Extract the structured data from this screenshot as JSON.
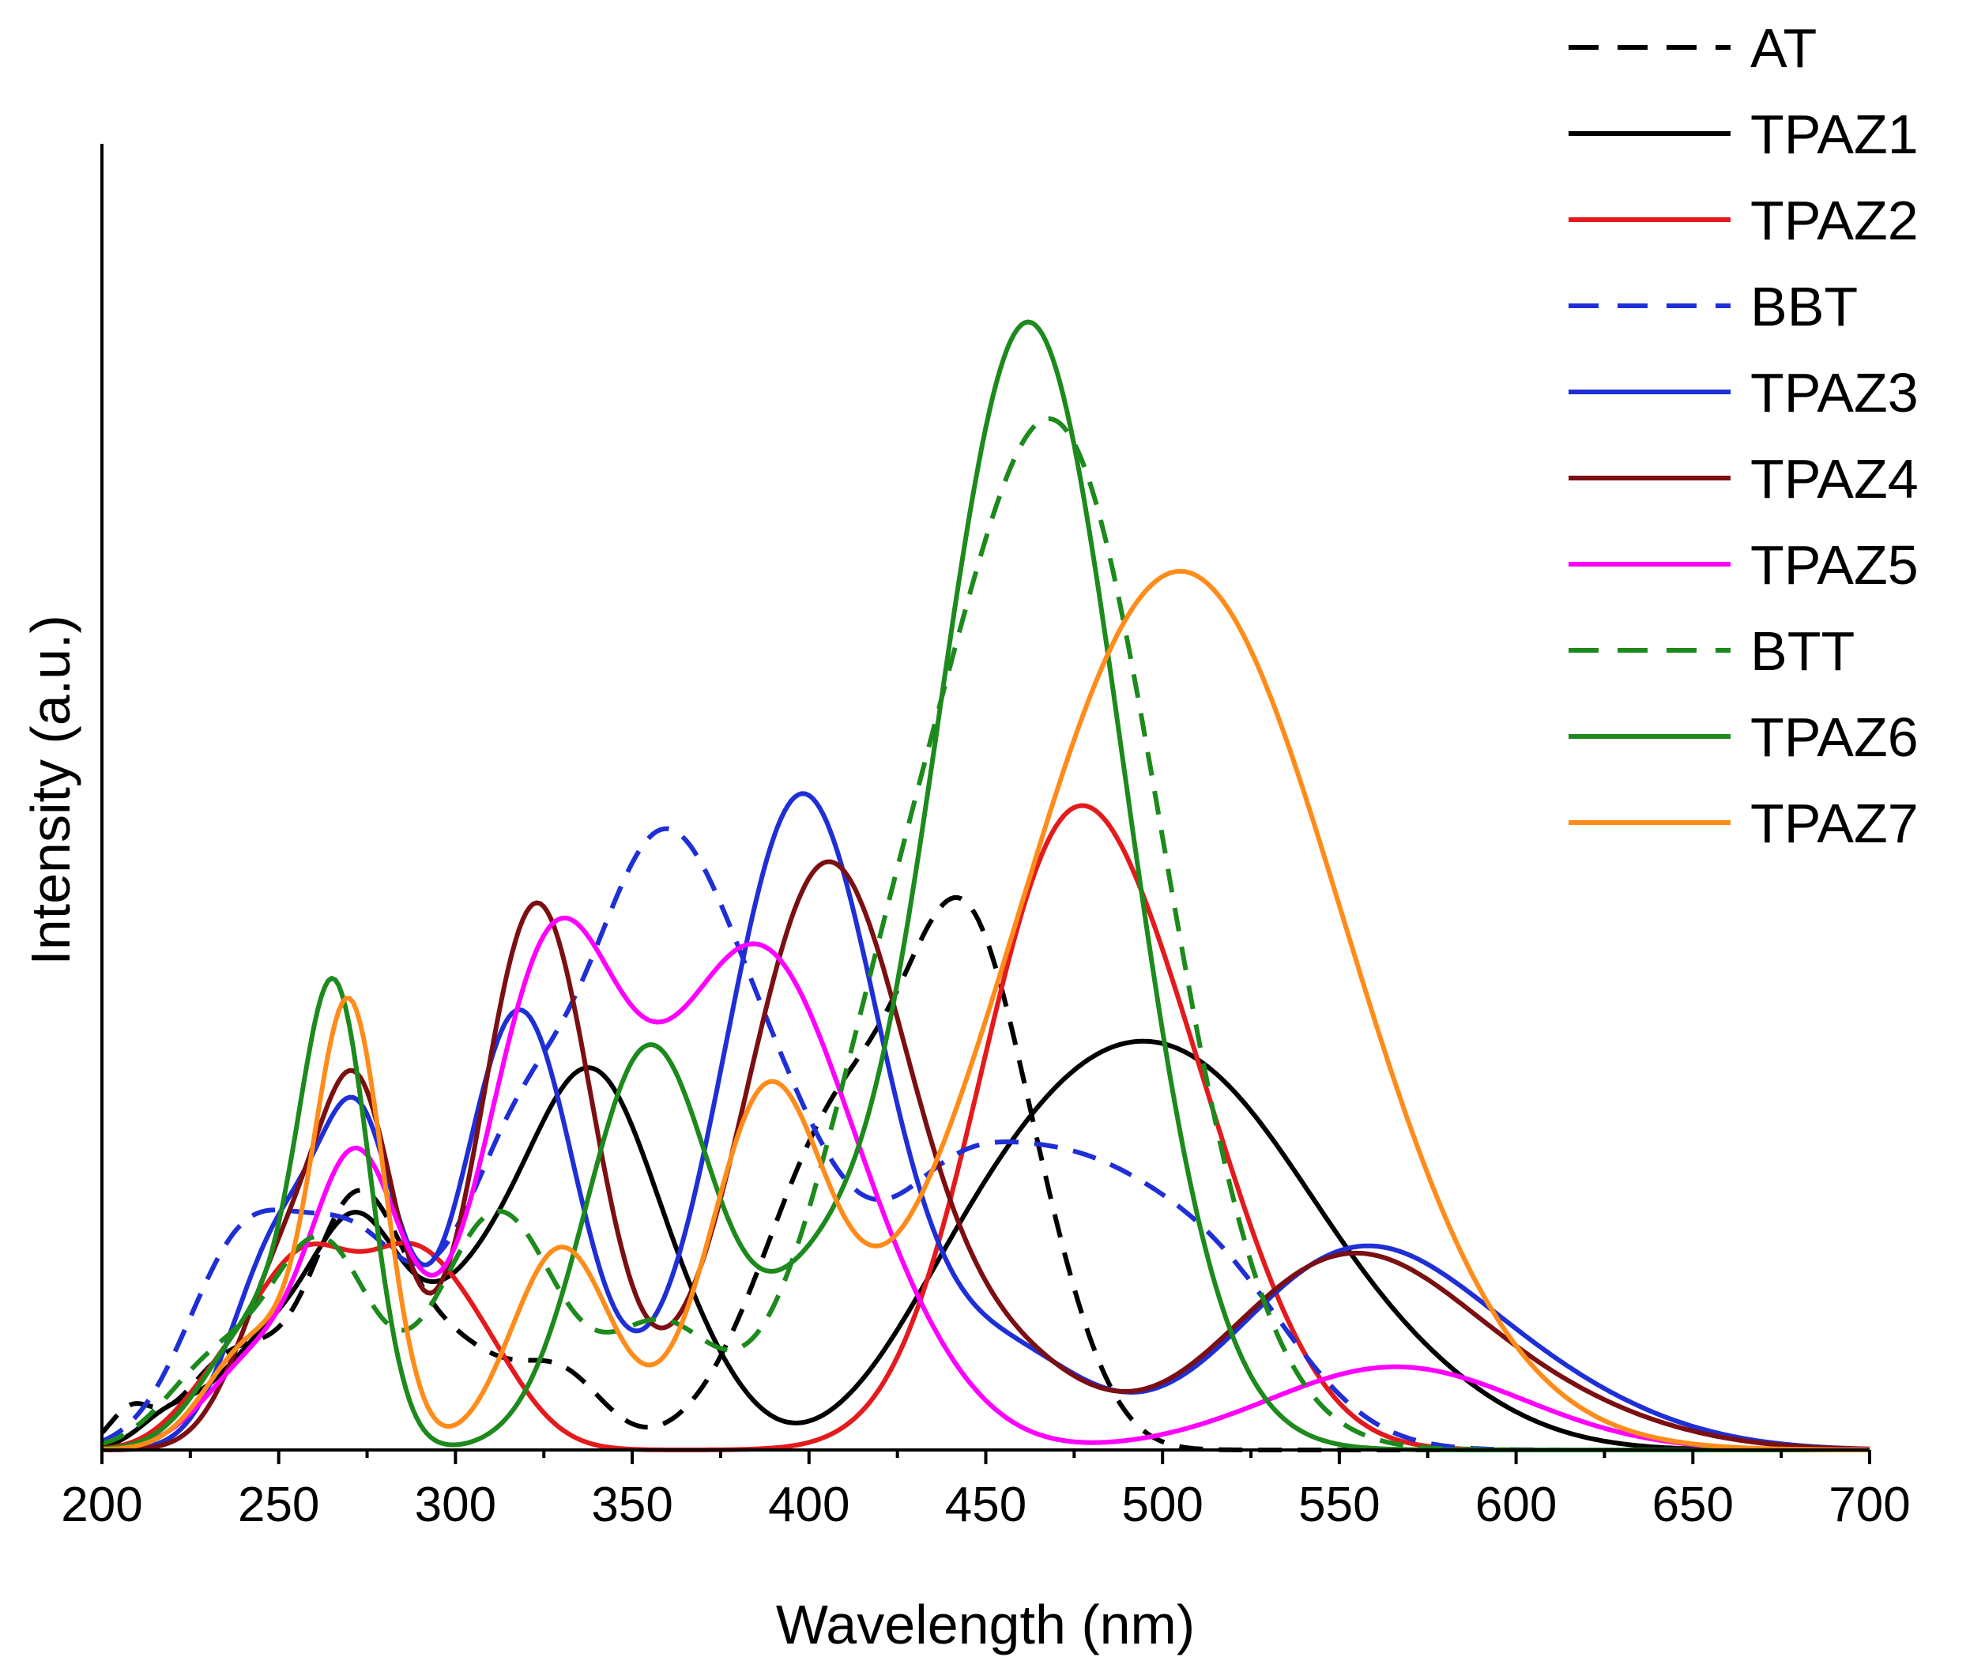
{
  "chart_data": {
    "type": "line",
    "title": "",
    "xlabel": "Wavelength (nm)",
    "ylabel": "Intensity (a.u.)",
    "xlim": [
      200,
      700
    ],
    "ylim": [
      0,
      1.1
    ],
    "x_ticks": [
      200,
      250,
      300,
      350,
      400,
      450,
      500,
      550,
      600,
      650,
      700
    ],
    "x_tick_labels": [
      "200",
      "250",
      "300",
      "350",
      "400",
      "450",
      "500",
      "550",
      "600",
      "650",
      "700"
    ],
    "y_ticks_shown": false,
    "grid": false,
    "legend_position": "top-right",
    "series": [
      {
        "name": "AT",
        "color": "#000000",
        "dash": "dashed",
        "peaks": [
          [
            208,
            0.03,
            6
          ],
          [
            238,
            0.08,
            14
          ],
          [
            272,
            0.2,
            13
          ],
          [
            300,
            0.08,
            15
          ],
          [
            330,
            0.06,
            12
          ],
          [
            410,
            0.28,
            22
          ],
          [
            445,
            0.36,
            16
          ],
          [
            468,
            0.08,
            14
          ]
        ]
      },
      {
        "name": "TPAZ1",
        "color": "#000000",
        "dash": "solid",
        "peaks": [
          [
            218,
            0.02,
            8
          ],
          [
            248,
            0.09,
            16
          ],
          [
            272,
            0.14,
            12
          ],
          [
            305,
            0.12,
            20
          ],
          [
            340,
            0.29,
            18
          ],
          [
            370,
            0.04,
            14
          ],
          [
            440,
            0.08,
            22
          ],
          [
            470,
            0.14,
            25
          ],
          [
            510,
            0.28,
            33
          ],
          [
            565,
            0.05,
            30
          ]
        ]
      },
      {
        "name": "TPAZ2",
        "color": "#e41a1c",
        "dash": "solid",
        "peaks": [
          [
            232,
            0.04,
            12
          ],
          [
            258,
            0.16,
            15
          ],
          [
            285,
            0.09,
            12
          ],
          [
            302,
            0.1,
            15
          ],
          [
            470,
            0.45,
            24
          ],
          [
            505,
            0.22,
            24
          ]
        ]
      },
      {
        "name": "BBT",
        "color": "#1f2fd6",
        "dash": "dashed",
        "peaks": [
          [
            240,
            0.17,
            16
          ],
          [
            272,
            0.16,
            16
          ],
          [
            316,
            0.22,
            17
          ],
          [
            355,
            0.43,
            20
          ],
          [
            390,
            0.25,
            22
          ],
          [
            437,
            0.12,
            18
          ],
          [
            470,
            0.21,
            26
          ],
          [
            515,
            0.13,
            24
          ]
        ]
      },
      {
        "name": "TPAZ3",
        "color": "#1f2fd6",
        "dash": "solid",
        "peaks": [
          [
            250,
            0.17,
            13
          ],
          [
            273,
            0.25,
            11
          ],
          [
            318,
            0.37,
            16
          ],
          [
            398,
            0.55,
            22
          ],
          [
            455,
            0.08,
            22
          ],
          [
            552,
            0.15,
            33
          ],
          [
            600,
            0.05,
            35
          ]
        ]
      },
      {
        "name": "TPAZ4",
        "color": "#7b0f12",
        "dash": "solid",
        "peaks": [
          [
            252,
            0.15,
            13
          ],
          [
            273,
            0.27,
            11
          ],
          [
            323,
            0.46,
            16
          ],
          [
            405,
            0.49,
            23
          ],
          [
            455,
            0.07,
            22
          ],
          [
            550,
            0.15,
            33
          ],
          [
            600,
            0.04,
            35
          ]
        ]
      },
      {
        "name": "TPAZ5",
        "color": "#ff00ff",
        "dash": "solid",
        "peaks": [
          [
            243,
            0.07,
            14
          ],
          [
            272,
            0.24,
            13
          ],
          [
            327,
            0.4,
            19
          ],
          [
            385,
            0.42,
            27
          ],
          [
            430,
            0.03,
            20
          ],
          [
            566,
            0.07,
            36
          ]
        ]
      },
      {
        "name": "BTT",
        "color": "#1c8a1c",
        "dash": "dashed",
        "peaks": [
          [
            232,
            0.07,
            14
          ],
          [
            262,
            0.17,
            14
          ],
          [
            312,
            0.2,
            17
          ],
          [
            358,
            0.1,
            15
          ],
          [
            420,
            0.22,
            22
          ],
          [
            470,
            0.85,
            30
          ]
        ]
      },
      {
        "name": "TPAZ6",
        "color": "#1c8a1c",
        "dash": "solid",
        "peaks": [
          [
            243,
            0.1,
            14
          ],
          [
            266,
            0.37,
            10
          ],
          [
            355,
            0.34,
            18
          ],
          [
            400,
            0.09,
            15
          ],
          [
            462,
            0.95,
            27
          ]
        ]
      },
      {
        "name": "TPAZ7",
        "color": "#ff8c1a",
        "dash": "solid",
        "peaks": [
          [
            243,
            0.09,
            13
          ],
          [
            270,
            0.37,
            10
          ],
          [
            330,
            0.17,
            14
          ],
          [
            388,
            0.28,
            16
          ],
          [
            505,
            0.74,
            46
          ]
        ]
      }
    ]
  }
}
